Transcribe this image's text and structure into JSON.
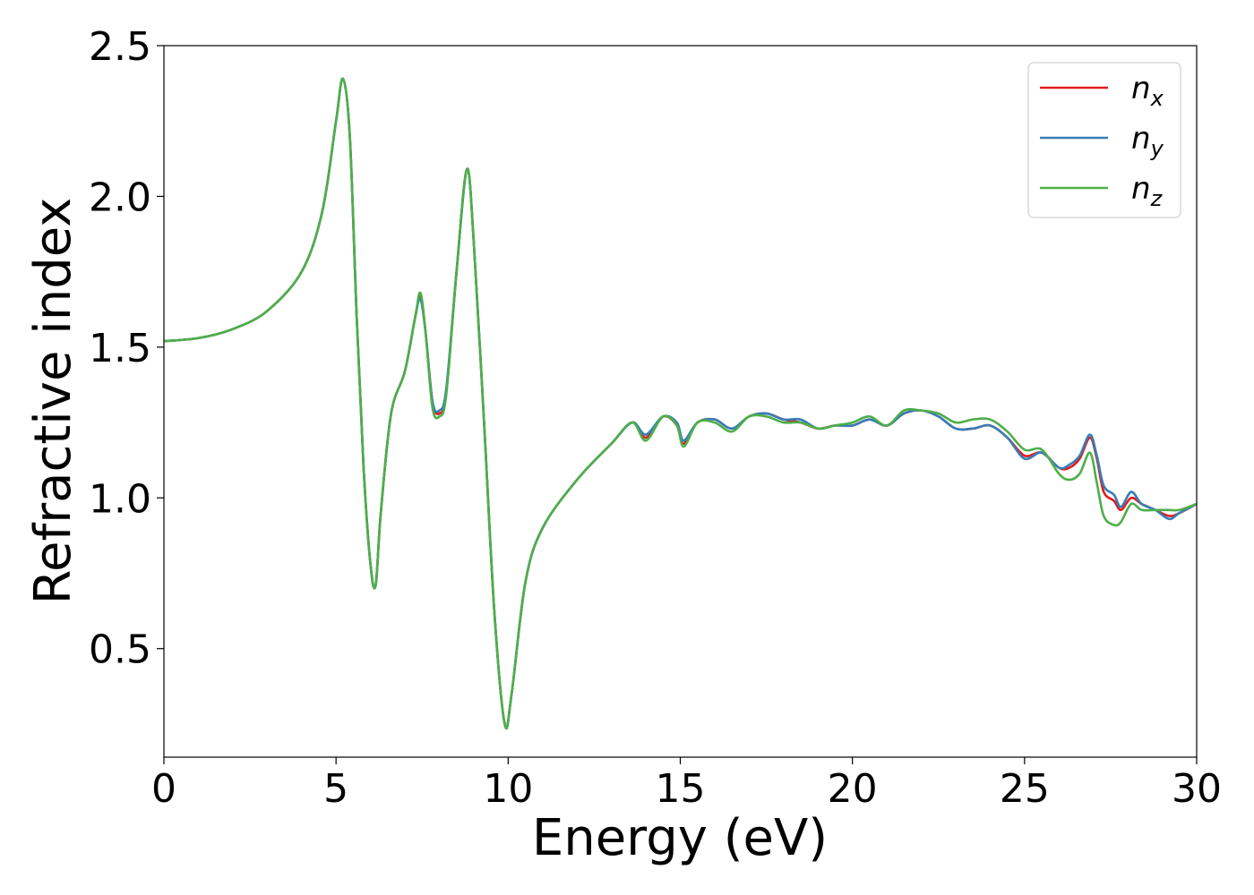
{
  "chart_data": {
    "type": "line",
    "xlabel": "Energy (eV)",
    "ylabel": "Refractive index",
    "xlim": [
      0,
      30
    ],
    "ylim": [
      0.14,
      2.5
    ],
    "x_ticks": [
      "0",
      "5",
      "10",
      "15",
      "20",
      "25",
      "30"
    ],
    "y_ticks": [
      "0.5",
      "1.0",
      "1.5",
      "2.0",
      "2.5"
    ],
    "grid": false,
    "legend_position": "top-right",
    "series": [
      {
        "name": "n",
        "subscript": "x",
        "color": "#e41a1c",
        "points": [
          [
            0,
            1.52
          ],
          [
            1,
            1.53
          ],
          [
            2,
            1.56
          ],
          [
            3,
            1.62
          ],
          [
            4,
            1.75
          ],
          [
            4.6,
            1.95
          ],
          [
            5.0,
            2.25
          ],
          [
            5.2,
            2.39
          ],
          [
            5.4,
            2.2
          ],
          [
            5.6,
            1.6
          ],
          [
            5.8,
            1.1
          ],
          [
            6.0,
            0.78
          ],
          [
            6.15,
            0.71
          ],
          [
            6.3,
            0.95
          ],
          [
            6.6,
            1.28
          ],
          [
            7.0,
            1.42
          ],
          [
            7.3,
            1.6
          ],
          [
            7.45,
            1.67
          ],
          [
            7.6,
            1.55
          ],
          [
            7.8,
            1.32
          ],
          [
            8.0,
            1.28
          ],
          [
            8.2,
            1.35
          ],
          [
            8.5,
            1.75
          ],
          [
            8.8,
            2.09
          ],
          [
            9.0,
            1.85
          ],
          [
            9.3,
            1.25
          ],
          [
            9.6,
            0.62
          ],
          [
            9.9,
            0.25
          ],
          [
            10.1,
            0.35
          ],
          [
            10.5,
            0.72
          ],
          [
            11,
            0.9
          ],
          [
            12,
            1.06
          ],
          [
            13,
            1.18
          ],
          [
            13.6,
            1.25
          ],
          [
            14.0,
            1.2
          ],
          [
            14.5,
            1.27
          ],
          [
            14.9,
            1.24
          ],
          [
            15.1,
            1.18
          ],
          [
            15.5,
            1.25
          ],
          [
            16,
            1.26
          ],
          [
            16.5,
            1.23
          ],
          [
            17,
            1.27
          ],
          [
            17.5,
            1.28
          ],
          [
            18,
            1.26
          ],
          [
            18.5,
            1.25
          ],
          [
            19,
            1.23
          ],
          [
            19.5,
            1.24
          ],
          [
            20,
            1.24
          ],
          [
            20.5,
            1.26
          ],
          [
            21,
            1.24
          ],
          [
            21.5,
            1.28
          ],
          [
            22,
            1.29
          ],
          [
            22.5,
            1.27
          ],
          [
            23,
            1.23
          ],
          [
            23.5,
            1.23
          ],
          [
            24,
            1.24
          ],
          [
            24.5,
            1.2
          ],
          [
            25,
            1.14
          ],
          [
            25.5,
            1.15
          ],
          [
            26,
            1.1
          ],
          [
            26.3,
            1.1
          ],
          [
            26.6,
            1.13
          ],
          [
            26.9,
            1.2
          ],
          [
            27.1,
            1.13
          ],
          [
            27.3,
            1.02
          ],
          [
            27.6,
            0.99
          ],
          [
            27.8,
            0.96
          ],
          [
            28.1,
            1.0
          ],
          [
            28.4,
            0.98
          ],
          [
            28.8,
            0.96
          ],
          [
            29.2,
            0.94
          ],
          [
            29.5,
            0.95
          ],
          [
            30,
            0.98
          ]
        ]
      },
      {
        "name": "n",
        "subscript": "y",
        "color": "#377eb8",
        "points": [
          [
            0,
            1.52
          ],
          [
            1,
            1.53
          ],
          [
            2,
            1.56
          ],
          [
            3,
            1.62
          ],
          [
            4,
            1.75
          ],
          [
            4.6,
            1.95
          ],
          [
            5.0,
            2.25
          ],
          [
            5.2,
            2.39
          ],
          [
            5.4,
            2.2
          ],
          [
            5.6,
            1.6
          ],
          [
            5.8,
            1.1
          ],
          [
            6.0,
            0.78
          ],
          [
            6.15,
            0.71
          ],
          [
            6.3,
            0.95
          ],
          [
            6.6,
            1.28
          ],
          [
            7.0,
            1.42
          ],
          [
            7.3,
            1.6
          ],
          [
            7.45,
            1.66
          ],
          [
            7.6,
            1.55
          ],
          [
            7.8,
            1.32
          ],
          [
            8.0,
            1.29
          ],
          [
            8.2,
            1.36
          ],
          [
            8.5,
            1.75
          ],
          [
            8.8,
            2.09
          ],
          [
            9.0,
            1.85
          ],
          [
            9.3,
            1.25
          ],
          [
            9.6,
            0.62
          ],
          [
            9.9,
            0.25
          ],
          [
            10.1,
            0.35
          ],
          [
            10.5,
            0.72
          ],
          [
            11,
            0.9
          ],
          [
            12,
            1.06
          ],
          [
            13,
            1.18
          ],
          [
            13.6,
            1.25
          ],
          [
            14.0,
            1.21
          ],
          [
            14.5,
            1.27
          ],
          [
            14.9,
            1.25
          ],
          [
            15.1,
            1.19
          ],
          [
            15.5,
            1.25
          ],
          [
            16,
            1.26
          ],
          [
            16.5,
            1.23
          ],
          [
            17,
            1.27
          ],
          [
            17.5,
            1.28
          ],
          [
            18,
            1.26
          ],
          [
            18.5,
            1.26
          ],
          [
            19,
            1.23
          ],
          [
            19.5,
            1.24
          ],
          [
            20,
            1.24
          ],
          [
            20.5,
            1.26
          ],
          [
            21,
            1.24
          ],
          [
            21.5,
            1.28
          ],
          [
            22,
            1.29
          ],
          [
            22.5,
            1.27
          ],
          [
            23,
            1.23
          ],
          [
            23.5,
            1.23
          ],
          [
            24,
            1.24
          ],
          [
            24.5,
            1.2
          ],
          [
            25,
            1.13
          ],
          [
            25.5,
            1.15
          ],
          [
            26,
            1.1
          ],
          [
            26.3,
            1.11
          ],
          [
            26.6,
            1.14
          ],
          [
            26.9,
            1.21
          ],
          [
            27.1,
            1.14
          ],
          [
            27.3,
            1.04
          ],
          [
            27.6,
            1.01
          ],
          [
            27.8,
            0.97
          ],
          [
            28.1,
            1.02
          ],
          [
            28.4,
            0.98
          ],
          [
            28.8,
            0.96
          ],
          [
            29.2,
            0.93
          ],
          [
            29.5,
            0.95
          ],
          [
            30,
            0.98
          ]
        ]
      },
      {
        "name": "n",
        "subscript": "z",
        "color": "#4daf4a",
        "points": [
          [
            0,
            1.52
          ],
          [
            1,
            1.53
          ],
          [
            2,
            1.56
          ],
          [
            3,
            1.62
          ],
          [
            4,
            1.75
          ],
          [
            4.6,
            1.95
          ],
          [
            5.0,
            2.25
          ],
          [
            5.2,
            2.39
          ],
          [
            5.4,
            2.2
          ],
          [
            5.6,
            1.6
          ],
          [
            5.8,
            1.1
          ],
          [
            6.0,
            0.78
          ],
          [
            6.15,
            0.71
          ],
          [
            6.3,
            0.95
          ],
          [
            6.6,
            1.28
          ],
          [
            7.0,
            1.42
          ],
          [
            7.3,
            1.6
          ],
          [
            7.45,
            1.68
          ],
          [
            7.6,
            1.55
          ],
          [
            7.8,
            1.3
          ],
          [
            8.0,
            1.27
          ],
          [
            8.2,
            1.34
          ],
          [
            8.5,
            1.75
          ],
          [
            8.8,
            2.09
          ],
          [
            9.0,
            1.85
          ],
          [
            9.3,
            1.25
          ],
          [
            9.6,
            0.62
          ],
          [
            9.9,
            0.25
          ],
          [
            10.1,
            0.35
          ],
          [
            10.5,
            0.72
          ],
          [
            11,
            0.9
          ],
          [
            12,
            1.06
          ],
          [
            13,
            1.18
          ],
          [
            13.6,
            1.25
          ],
          [
            14.0,
            1.19
          ],
          [
            14.5,
            1.27
          ],
          [
            14.9,
            1.24
          ],
          [
            15.1,
            1.17
          ],
          [
            15.5,
            1.25
          ],
          [
            16,
            1.25
          ],
          [
            16.5,
            1.22
          ],
          [
            17,
            1.27
          ],
          [
            17.5,
            1.27
          ],
          [
            18,
            1.25
          ],
          [
            18.5,
            1.25
          ],
          [
            19,
            1.23
          ],
          [
            19.5,
            1.24
          ],
          [
            20,
            1.25
          ],
          [
            20.5,
            1.27
          ],
          [
            21,
            1.24
          ],
          [
            21.5,
            1.29
          ],
          [
            22,
            1.29
          ],
          [
            22.5,
            1.28
          ],
          [
            23,
            1.25
          ],
          [
            23.5,
            1.26
          ],
          [
            24,
            1.26
          ],
          [
            24.5,
            1.22
          ],
          [
            25,
            1.16
          ],
          [
            25.5,
            1.16
          ],
          [
            26,
            1.08
          ],
          [
            26.3,
            1.06
          ],
          [
            26.6,
            1.08
          ],
          [
            26.9,
            1.15
          ],
          [
            27.1,
            1.05
          ],
          [
            27.3,
            0.94
          ],
          [
            27.6,
            0.91
          ],
          [
            27.8,
            0.92
          ],
          [
            28.1,
            0.98
          ],
          [
            28.4,
            0.96
          ],
          [
            28.8,
            0.96
          ],
          [
            29.2,
            0.96
          ],
          [
            29.5,
            0.96
          ],
          [
            30,
            0.98
          ]
        ]
      }
    ]
  }
}
